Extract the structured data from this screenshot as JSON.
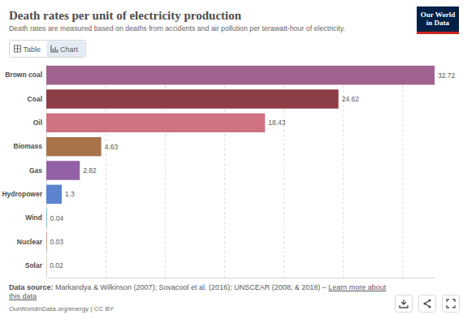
{
  "chart_data": {
    "type": "bar",
    "orientation": "horizontal",
    "title": "Death rates per unit of electricity production",
    "subtitle": "Death rates are measured based on deaths from accidents and air pollution per terawatt-hour of electricity.",
    "categories": [
      "Brown coal",
      "Coal",
      "Oil",
      "Biomass",
      "Gas",
      "Hydropower",
      "Wind",
      "Nuclear",
      "Solar"
    ],
    "values": [
      32.72,
      24.62,
      18.43,
      4.63,
      2.82,
      1.3,
      0.04,
      0.03,
      0.02
    ],
    "colors": [
      "#a0628f",
      "#8c3d45",
      "#cf7280",
      "#a8734a",
      "#9460a6",
      "#5b83cf",
      "#3ba7b5",
      "#c45c2a",
      "#e2b23c"
    ],
    "xlim": [
      0,
      32.72
    ],
    "xticks": [
      0,
      5,
      10,
      15,
      20,
      25,
      30
    ],
    "grid": true,
    "data_labels": true,
    "tick_labels": "y"
  },
  "page": {
    "logo": [
      "Our World",
      "in Data"
    ],
    "tabs": [
      "Table",
      "Chart"
    ],
    "source_label": "Data source:",
    "source": "Markandya & Wilkinson (2007); Sovacool et al. (2016); UNSCEAR (2008; & 2018) –",
    "source_link": "Learn more about this data",
    "credit": "OurWorldInData.org/energy | CC BY"
  }
}
